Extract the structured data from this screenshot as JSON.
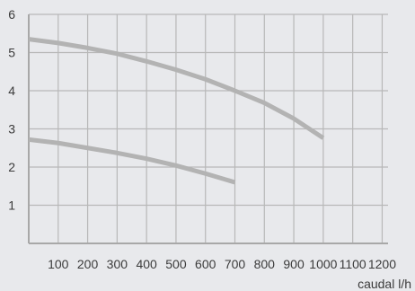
{
  "chart_data": {
    "type": "line",
    "xlabel": "caudal l/h",
    "ylabel": "",
    "xlim": [
      0,
      1220
    ],
    "ylim": [
      0,
      6
    ],
    "x_ticks": [
      100,
      200,
      300,
      400,
      500,
      600,
      700,
      800,
      900,
      1000,
      1100,
      1200
    ],
    "x_tick_labels": [
      "100",
      "200",
      "300",
      "400",
      "500",
      "600",
      "700",
      "800",
      "900",
      "1000",
      "1100",
      "1200"
    ],
    "y_ticks": [
      1,
      2,
      3,
      4,
      5,
      6
    ],
    "y_tick_labels": [
      "1",
      "2",
      "3",
      "4",
      "5",
      "6"
    ],
    "grid": true,
    "series": [
      {
        "color": "#b3b3b3",
        "x": [
          0,
          100,
          200,
          300,
          400,
          500,
          600,
          700,
          800,
          900,
          1000
        ],
        "y": [
          5.35,
          5.25,
          5.12,
          4.97,
          4.77,
          4.55,
          4.3,
          4.0,
          3.68,
          3.27,
          2.76
        ]
      },
      {
        "color": "#b3b3b3",
        "x": [
          0,
          100,
          200,
          300,
          400,
          500,
          600,
          700
        ],
        "y": [
          2.72,
          2.63,
          2.5,
          2.37,
          2.22,
          2.04,
          1.83,
          1.6
        ]
      }
    ]
  }
}
